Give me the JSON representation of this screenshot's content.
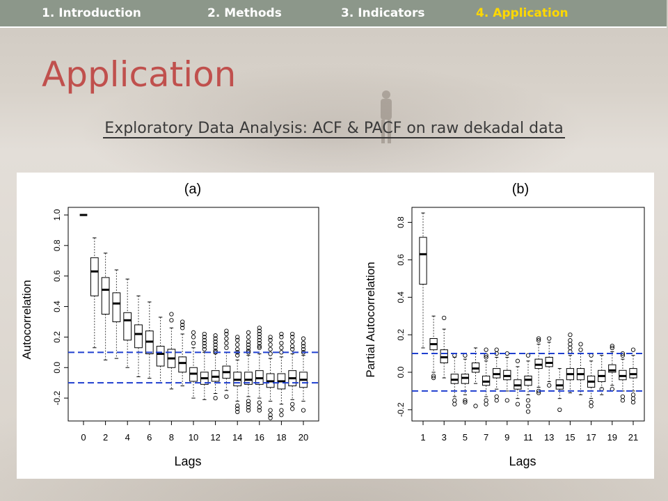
{
  "nav": {
    "tabs": [
      {
        "label": "1. Introduction",
        "active": false
      },
      {
        "label": "2. Methods",
        "active": false
      },
      {
        "label": "3. Indicators",
        "active": false
      },
      {
        "label": "4. Application",
        "active": true
      }
    ]
  },
  "slide": {
    "title": "Application",
    "subtitle": "Exploratory Data Analysis: ACF & PACF on raw dekadal data"
  },
  "colors": {
    "title": "#c0504d",
    "nav_bg": "#8c978a",
    "nav_active": "#ffd800",
    "confidence_line": "#1f3fcf"
  },
  "chart_data": [
    {
      "type": "boxplot",
      "title": "(a)",
      "xlabel": "Lags",
      "ylabel": "Autocorrelation",
      "ylim": [
        -0.35,
        1.05
      ],
      "yticks": [
        -0.2,
        0.0,
        0.2,
        0.4,
        0.6,
        0.8,
        1.0
      ],
      "xticks": [
        0,
        2,
        4,
        6,
        8,
        10,
        12,
        14,
        16,
        18,
        20
      ],
      "confidence_bounds": [
        0.1,
        -0.1
      ],
      "lags": [
        0,
        1,
        2,
        3,
        4,
        5,
        6,
        7,
        8,
        9,
        10,
        11,
        12,
        13,
        14,
        15,
        16,
        17,
        18,
        19,
        20
      ],
      "boxes": [
        {
          "lag": 0,
          "min": 1.0,
          "q1": 1.0,
          "median": 1.0,
          "q3": 1.0,
          "max": 1.0,
          "outliers": []
        },
        {
          "lag": 1,
          "min": 0.13,
          "q1": 0.47,
          "median": 0.63,
          "q3": 0.72,
          "max": 0.85,
          "outliers": []
        },
        {
          "lag": 2,
          "min": 0.05,
          "q1": 0.35,
          "median": 0.51,
          "q3": 0.59,
          "max": 0.75,
          "outliers": []
        },
        {
          "lag": 3,
          "min": 0.06,
          "q1": 0.3,
          "median": 0.42,
          "q3": 0.49,
          "max": 0.64,
          "outliers": []
        },
        {
          "lag": 4,
          "min": 0.0,
          "q1": 0.18,
          "median": 0.31,
          "q3": 0.36,
          "max": 0.58,
          "outliers": []
        },
        {
          "lag": 5,
          "min": -0.06,
          "q1": 0.13,
          "median": 0.22,
          "q3": 0.28,
          "max": 0.47,
          "outliers": []
        },
        {
          "lag": 6,
          "min": -0.07,
          "q1": 0.09,
          "median": 0.17,
          "q3": 0.24,
          "max": 0.43,
          "outliers": []
        },
        {
          "lag": 7,
          "min": -0.1,
          "q1": 0.01,
          "median": 0.09,
          "q3": 0.14,
          "max": 0.33,
          "outliers": []
        },
        {
          "lag": 8,
          "min": -0.14,
          "q1": 0.0,
          "median": 0.06,
          "q3": 0.12,
          "max": 0.26,
          "outliers": [
            0.31,
            0.35
          ]
        },
        {
          "lag": 9,
          "min": -0.12,
          "q1": -0.03,
          "median": 0.03,
          "q3": 0.07,
          "max": 0.22,
          "outliers": [
            0.26,
            0.28,
            0.3
          ]
        },
        {
          "lag": 10,
          "min": -0.2,
          "q1": -0.09,
          "median": -0.04,
          "q3": 0.0,
          "max": 0.13,
          "outliers": [
            0.16,
            0.2,
            0.23
          ]
        },
        {
          "lag": 11,
          "min": -0.21,
          "q1": -0.11,
          "median": -0.07,
          "q3": -0.03,
          "max": 0.1,
          "outliers": [
            0.12,
            0.14,
            0.16,
            0.18,
            0.2,
            0.22
          ]
        },
        {
          "lag": 12,
          "min": -0.17,
          "q1": -0.09,
          "median": -0.06,
          "q3": -0.02,
          "max": 0.09,
          "outliers": [
            -0.2,
            0.1,
            0.11,
            0.13,
            0.15,
            0.17,
            0.19,
            0.21
          ]
        },
        {
          "lag": 13,
          "min": -0.15,
          "q1": -0.07,
          "median": -0.03,
          "q3": 0.01,
          "max": 0.1,
          "outliers": [
            -0.19,
            0.13,
            0.16,
            0.19,
            0.22,
            0.24
          ]
        },
        {
          "lag": 14,
          "min": -0.22,
          "q1": -0.12,
          "median": -0.08,
          "q3": -0.03,
          "max": 0.05,
          "outliers": [
            -0.25,
            -0.27,
            -0.29,
            0.08,
            0.1,
            0.12,
            0.15,
            0.18,
            0.2
          ]
        },
        {
          "lag": 15,
          "min": -0.19,
          "q1": -0.11,
          "median": -0.08,
          "q3": -0.03,
          "max": 0.08,
          "outliers": [
            -0.22,
            -0.24,
            -0.26,
            -0.28,
            0.1,
            0.11,
            0.13,
            0.15,
            0.17,
            0.2,
            0.23
          ]
        },
        {
          "lag": 16,
          "min": -0.2,
          "q1": -0.11,
          "median": -0.07,
          "q3": -0.02,
          "max": 0.09,
          "outliers": [
            -0.23,
            -0.26,
            -0.28,
            0.13,
            0.14,
            0.16,
            0.18,
            0.2,
            0.22,
            0.24,
            0.26
          ]
        },
        {
          "lag": 17,
          "min": -0.22,
          "q1": -0.13,
          "median": -0.09,
          "q3": -0.04,
          "max": 0.06,
          "outliers": [
            -0.28,
            -0.31,
            -0.33,
            0.09,
            0.12,
            0.15,
            0.18,
            0.2
          ]
        },
        {
          "lag": 18,
          "min": -0.24,
          "q1": -0.14,
          "median": -0.09,
          "q3": -0.04,
          "max": 0.07,
          "outliers": [
            -0.28,
            -0.31,
            0.1,
            0.13,
            0.16,
            0.2,
            0.22
          ]
        },
        {
          "lag": 19,
          "min": -0.21,
          "q1": -0.12,
          "median": -0.07,
          "q3": -0.02,
          "max": 0.09,
          "outliers": [
            -0.24,
            -0.27,
            0.12,
            0.14,
            0.17,
            0.2,
            0.22
          ]
        },
        {
          "lag": 20,
          "min": -0.22,
          "q1": -0.13,
          "median": -0.08,
          "q3": -0.03,
          "max": 0.08,
          "outliers": [
            -0.28,
            0.1,
            0.12,
            0.14,
            0.16,
            0.19
          ]
        }
      ]
    },
    {
      "type": "boxplot",
      "title": "(b)",
      "xlabel": "Lags",
      "ylabel": "Partial Autocorrelation",
      "ylim": [
        -0.26,
        0.88
      ],
      "yticks": [
        -0.2,
        0.0,
        0.2,
        0.4,
        0.6,
        0.8
      ],
      "xticks": [
        1,
        3,
        5,
        7,
        9,
        11,
        13,
        15,
        17,
        19,
        21
      ],
      "confidence_bounds": [
        0.1,
        -0.1
      ],
      "lags": [
        1,
        2,
        3,
        4,
        5,
        6,
        7,
        8,
        9,
        10,
        11,
        12,
        13,
        14,
        15,
        16,
        17,
        18,
        19,
        20,
        21
      ],
      "boxes": [
        {
          "lag": 1,
          "min": 0.13,
          "q1": 0.47,
          "median": 0.63,
          "q3": 0.72,
          "max": 0.85,
          "outliers": []
        },
        {
          "lag": 2,
          "min": 0.0,
          "q1": 0.12,
          "median": 0.15,
          "q3": 0.18,
          "max": 0.3,
          "outliers": [
            -0.02,
            -0.03
          ]
        },
        {
          "lag": 3,
          "min": -0.03,
          "q1": 0.05,
          "median": 0.08,
          "q3": 0.12,
          "max": 0.23,
          "outliers": [
            0.29
          ]
        },
        {
          "lag": 4,
          "min": -0.13,
          "q1": -0.06,
          "median": -0.04,
          "q3": -0.01,
          "max": 0.08,
          "outliers": [
            -0.15,
            -0.17,
            0.09
          ]
        },
        {
          "lag": 5,
          "min": -0.12,
          "q1": -0.06,
          "median": -0.03,
          "q3": -0.01,
          "max": 0.07,
          "outliers": [
            -0.15,
            -0.16,
            0.09
          ]
        },
        {
          "lag": 6,
          "min": -0.06,
          "q1": 0.0,
          "median": 0.02,
          "q3": 0.05,
          "max": 0.13,
          "outliers": [
            -0.18
          ]
        },
        {
          "lag": 7,
          "min": -0.13,
          "q1": -0.07,
          "median": -0.05,
          "q3": -0.02,
          "max": 0.06,
          "outliers": [
            -0.15,
            -0.17,
            0.08,
            0.09,
            0.12
          ]
        },
        {
          "lag": 8,
          "min": -0.09,
          "q1": -0.03,
          "median": -0.01,
          "q3": 0.02,
          "max": 0.08,
          "outliers": [
            -0.13,
            -0.15,
            0.1,
            0.12
          ]
        },
        {
          "lag": 9,
          "min": -0.1,
          "q1": -0.04,
          "median": -0.02,
          "q3": 0.01,
          "max": 0.08,
          "outliers": [
            -0.15,
            0.1
          ]
        },
        {
          "lag": 10,
          "min": -0.14,
          "q1": -0.09,
          "median": -0.07,
          "q3": -0.04,
          "max": 0.03,
          "outliers": [
            -0.17,
            0.06
          ]
        },
        {
          "lag": 11,
          "min": -0.12,
          "q1": -0.07,
          "median": -0.04,
          "q3": -0.02,
          "max": 0.06,
          "outliers": [
            -0.15,
            -0.18,
            -0.21,
            0.09
          ]
        },
        {
          "lag": 12,
          "min": -0.08,
          "q1": 0.02,
          "median": 0.04,
          "q3": 0.07,
          "max": 0.15,
          "outliers": [
            -0.1,
            -0.11,
            0.17,
            0.18
          ]
        },
        {
          "lag": 13,
          "min": -0.05,
          "q1": 0.03,
          "median": 0.05,
          "q3": 0.08,
          "max": 0.16,
          "outliers": [
            -0.07,
            0.18
          ]
        },
        {
          "lag": 14,
          "min": -0.14,
          "q1": -0.09,
          "median": -0.07,
          "q3": -0.04,
          "max": 0.02,
          "outliers": [
            -0.2
          ]
        },
        {
          "lag": 15,
          "min": -0.11,
          "q1": -0.04,
          "median": -0.01,
          "q3": 0.02,
          "max": 0.09,
          "outliers": [
            0.11,
            0.13,
            0.15,
            0.17,
            0.2
          ]
        },
        {
          "lag": 16,
          "min": -0.12,
          "q1": -0.04,
          "median": -0.01,
          "q3": 0.02,
          "max": 0.1,
          "outliers": [
            0.12,
            0.15
          ]
        },
        {
          "lag": 17,
          "min": -0.14,
          "q1": -0.08,
          "median": -0.05,
          "q3": -0.02,
          "max": 0.06,
          "outliers": [
            -0.16,
            -0.18,
            0.09
          ]
        },
        {
          "lag": 18,
          "min": -0.12,
          "q1": -0.05,
          "median": -0.02,
          "q3": 0.01,
          "max": 0.09,
          "outliers": [
            -0.09
          ]
        },
        {
          "lag": 19,
          "min": -0.07,
          "q1": 0.0,
          "median": 0.01,
          "q3": 0.04,
          "max": 0.11,
          "outliers": [
            -0.09,
            0.13,
            0.14
          ]
        },
        {
          "lag": 20,
          "min": -0.1,
          "q1": -0.04,
          "median": -0.02,
          "q3": 0.01,
          "max": 0.07,
          "outliers": [
            -0.13,
            -0.15,
            0.09,
            0.1
          ]
        },
        {
          "lag": 21,
          "min": -0.1,
          "q1": -0.03,
          "median": -0.01,
          "q3": 0.02,
          "max": 0.09,
          "outliers": [
            -0.12,
            -0.14,
            -0.16,
            0.12
          ]
        }
      ]
    }
  ]
}
